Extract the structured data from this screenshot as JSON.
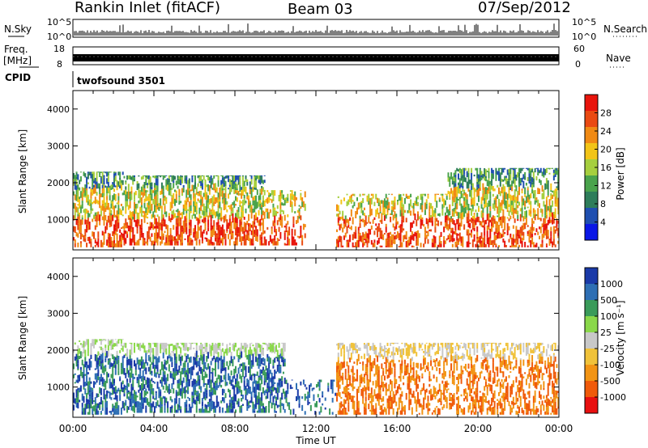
{
  "header": {
    "title": "Rankin Inlet (fitACF)",
    "beam": "Beam 03",
    "date": "07/Sep/2012"
  },
  "top_panels": {
    "nsky_label": "N.Sky",
    "nsky_ticks": [
      "10^5",
      "10^0"
    ],
    "nsearch_label": "N.Search",
    "nsearch_ticks": [
      "10^5",
      "10^0"
    ],
    "freq_label": "Freq.",
    "freq_unit": "[MHz]",
    "freq_ticks": [
      "18",
      "8"
    ],
    "nave_label": "Nave",
    "nave_ticks": [
      "60",
      "0"
    ],
    "cpid_label": "CPID",
    "cpid_value": "twofsound 3501"
  },
  "colors": {
    "power": [
      "#0a17e6",
      "#1f4fb0",
      "#2e7d5a",
      "#4aa34c",
      "#a6cf3e",
      "#f2c417",
      "#f08a14",
      "#ea4a12",
      "#e8140c"
    ],
    "velocity": [
      "#e81010",
      "#f05a0a",
      "#f29414",
      "#f0c23a",
      "#c8c8c8",
      "#8ad84a",
      "#3a9b5a",
      "#2e6fb4",
      "#1a3aa8"
    ]
  },
  "chart_data": [
    {
      "type": "heatmap",
      "panel": "power",
      "ylabel": "Slant Range [km]",
      "y_ticks": [
        "1000",
        "2000",
        "3000",
        "4000"
      ],
      "ylim": [
        180,
        4500
      ],
      "colorbar_label": "Power [dB]",
      "colorbar_ticks": [
        "4",
        "8",
        "12",
        "16",
        "20",
        "24",
        "28"
      ],
      "clim": [
        0,
        32
      ],
      "x_ticks": [
        "00:00",
        "04:00",
        "08:00",
        "12:00",
        "16:00",
        "20:00",
        "00:00"
      ],
      "xlim_hours": [
        0,
        24
      ]
    },
    {
      "type": "heatmap",
      "panel": "velocity",
      "ylabel": "Slant Range [km]",
      "y_ticks": [
        "1000",
        "2000",
        "3000",
        "4000"
      ],
      "ylim": [
        180,
        4500
      ],
      "colorbar_label": "Velocity [m s⁻¹]",
      "colorbar_ticks": [
        "-1000",
        "-500",
        "-100",
        "-25",
        "25",
        "100",
        "500",
        "1000"
      ],
      "x_ticks": [
        "00:00",
        "04:00",
        "08:00",
        "12:00",
        "16:00",
        "20:00",
        "00:00"
      ],
      "xlabel": "Time UT",
      "xlim_hours": [
        0,
        24
      ]
    }
  ]
}
